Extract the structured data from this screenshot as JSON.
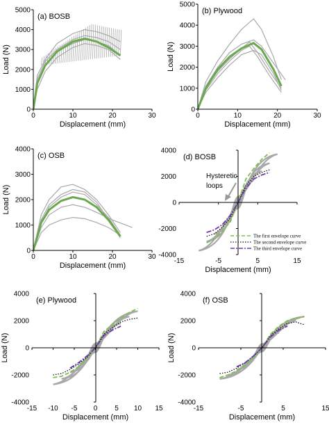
{
  "colors": {
    "gray_curve": "#a8a8a8",
    "green_avg": "#6aa84f",
    "env1": "#7bbf4e",
    "env2": "#111111",
    "env3": "#6a3aa8"
  },
  "chart_data": [
    {
      "id": "a",
      "type": "line",
      "label": "(a) BOSB",
      "xlabel": "Displacement (mm)",
      "ylabel": "Load (N)",
      "xlim": [
        0,
        30
      ],
      "ylim": [
        0,
        5000
      ],
      "xticks": [
        "0",
        "10",
        "20",
        "30"
      ],
      "yticks": [
        "0",
        "1000",
        "2000",
        "3000",
        "4000",
        "5000"
      ],
      "series": [
        {
          "style": "gray",
          "x": [
            0,
            1,
            3,
            6,
            10,
            13,
            16,
            19,
            22
          ],
          "y": [
            0,
            1700,
            2500,
            3300,
            3800,
            4000,
            3900,
            3700,
            3400
          ]
        },
        {
          "style": "gray",
          "x": [
            0,
            1,
            3,
            6,
            10,
            13,
            16,
            19,
            22
          ],
          "y": [
            0,
            1300,
            2200,
            2900,
            3300,
            3500,
            3400,
            3200,
            2700
          ]
        },
        {
          "style": "gray",
          "x": [
            0,
            1,
            3,
            6,
            10,
            13,
            16,
            19,
            22
          ],
          "y": [
            0,
            1000,
            1900,
            2600,
            3100,
            3300,
            3200,
            3000,
            2500
          ]
        },
        {
          "style": "gray",
          "x": [
            0,
            1,
            3,
            6,
            10,
            13,
            16,
            19,
            22
          ],
          "y": [
            0,
            1500,
            2400,
            3000,
            3500,
            3700,
            3600,
            3400,
            3000
          ]
        },
        {
          "style": "green",
          "x": [
            0,
            1,
            3,
            6,
            10,
            13,
            16,
            19,
            22
          ],
          "y": [
            0,
            1300,
            2200,
            2900,
            3400,
            3550,
            3400,
            3100,
            2700
          ]
        }
      ],
      "cyclic_band": {
        "x": [
          2,
          22
        ],
        "low": [
          2200,
          2700
        ],
        "high": [
          2600,
          4300
        ]
      }
    },
    {
      "id": "b",
      "type": "line",
      "label": "(b) Plywood",
      "xlabel": "Displacement (mm)",
      "ylabel": "Load (N)",
      "xlim": [
        0,
        30
      ],
      "ylim": [
        0,
        5000
      ],
      "xticks": [
        "0",
        "10",
        "20",
        "30"
      ],
      "yticks": [
        "0",
        "1000",
        "2000",
        "3000",
        "4000",
        "5000"
      ],
      "series": [
        {
          "style": "gray",
          "x": [
            0,
            2,
            5,
            8,
            11,
            14,
            16,
            19,
            21
          ],
          "y": [
            0,
            1300,
            2300,
            3100,
            3800,
            4300,
            3800,
            2500,
            1400
          ]
        },
        {
          "style": "gray",
          "x": [
            0,
            2,
            5,
            8,
            11,
            13,
            15,
            18,
            21
          ],
          "y": [
            0,
            1000,
            1800,
            2400,
            2900,
            3200,
            2700,
            1800,
            1000
          ]
        },
        {
          "style": "gray",
          "x": [
            0,
            2,
            5,
            8,
            11,
            14,
            16,
            19,
            21
          ],
          "y": [
            0,
            800,
            1500,
            2100,
            2600,
            2800,
            2600,
            1700,
            900
          ]
        },
        {
          "style": "gray",
          "x": [
            0,
            2,
            5,
            8,
            11,
            14,
            16,
            19,
            22
          ],
          "y": [
            0,
            1100,
            2000,
            2700,
            3100,
            3300,
            3000,
            2200,
            1400
          ]
        },
        {
          "style": "gray",
          "x": [
            0,
            2,
            5,
            8,
            11,
            13,
            15,
            18,
            21
          ],
          "y": [
            0,
            900,
            1700,
            2300,
            2800,
            3000,
            2500,
            1600,
            800
          ]
        },
        {
          "style": "green",
          "x": [
            0,
            2,
            5,
            8,
            11,
            14,
            16,
            19,
            21
          ],
          "y": [
            0,
            1000,
            1900,
            2500,
            2900,
            3150,
            2850,
            1900,
            1100
          ]
        }
      ]
    },
    {
      "id": "c",
      "type": "line",
      "label": "(c) OSB",
      "xlabel": "Displacement (mm)",
      "ylabel": "Load (N)",
      "xlim": [
        0,
        30
      ],
      "ylim": [
        0,
        4000
      ],
      "xticks": [
        "0",
        "10",
        "20",
        "30"
      ],
      "yticks": [
        "0",
        "1000",
        "2000",
        "3000",
        "4000"
      ],
      "series": [
        {
          "style": "gray",
          "x": [
            0,
            2,
            4,
            7,
            10,
            13,
            16,
            19,
            22
          ],
          "y": [
            0,
            1400,
            2000,
            2500,
            2600,
            2400,
            2000,
            1400,
            700
          ]
        },
        {
          "style": "gray",
          "x": [
            0,
            2,
            4,
            7,
            10,
            13,
            16,
            19,
            22
          ],
          "y": [
            0,
            1100,
            1700,
            2100,
            2300,
            2200,
            1800,
            1300,
            600
          ]
        },
        {
          "style": "gray",
          "x": [
            0,
            2,
            4,
            7,
            10,
            13,
            16,
            20,
            25
          ],
          "y": [
            0,
            900,
            1400,
            1700,
            1800,
            1700,
            1500,
            1200,
            900
          ]
        },
        {
          "style": "gray",
          "x": [
            0,
            2,
            4,
            7,
            10,
            13,
            16,
            19,
            22
          ],
          "y": [
            0,
            700,
            1000,
            1200,
            1300,
            1250,
            1100,
            900,
            600
          ]
        },
        {
          "style": "gray",
          "x": [
            0,
            2,
            4,
            7,
            10,
            13,
            16,
            19,
            22
          ],
          "y": [
            0,
            1200,
            1800,
            2200,
            2400,
            2300,
            1900,
            1200,
            500
          ]
        },
        {
          "style": "green",
          "x": [
            0,
            2,
            4,
            7,
            10,
            13,
            16,
            19,
            22
          ],
          "y": [
            0,
            1100,
            1600,
            1950,
            2100,
            2000,
            1700,
            1200,
            550
          ]
        }
      ]
    },
    {
      "id": "d",
      "type": "line",
      "label": "(d) BOSB",
      "annotation": "Hysteretic loops",
      "xlabel": "Displacement (mm)",
      "ylabel": "",
      "xlim": [
        -15,
        15
      ],
      "ylim": [
        -4000,
        4000
      ],
      "xticks": [
        "-15",
        "-5",
        "5",
        "15"
      ],
      "yticks": [
        "-4000",
        "-2000",
        "0",
        "2000",
        "4000"
      ],
      "loop_amplitudes": [
        2,
        4,
        6,
        8,
        10
      ],
      "loop_peak_loads": [
        1000,
        1700,
        2400,
        3000,
        3700
      ],
      "series": [
        {
          "style": "env1",
          "name": "The first envelope curve",
          "x": [
            -8,
            -6,
            -4,
            -2,
            0,
            2,
            4,
            6,
            8
          ],
          "y": [
            -3100,
            -2800,
            -2200,
            -1500,
            0,
            1800,
            2600,
            3300,
            3800
          ]
        },
        {
          "style": "env2",
          "name": "The second envelope curve",
          "x": [
            -8,
            -6,
            -4,
            -2,
            0,
            2,
            4,
            6,
            8
          ],
          "y": [
            -2600,
            -2400,
            -1900,
            -1200,
            0,
            1300,
            2000,
            2300,
            2500
          ]
        },
        {
          "style": "env3",
          "name": "The third envelope curve",
          "x": [
            -8,
            -6,
            -4,
            -2,
            0,
            2,
            4,
            6,
            8
          ],
          "y": [
            -2300,
            -2100,
            -1700,
            -1000,
            0,
            1100,
            1800,
            2100,
            2300
          ]
        }
      ]
    },
    {
      "id": "e",
      "type": "line",
      "label": "(e) Plywood",
      "xlabel": "Displacement (mm)",
      "ylabel": "Load (N)",
      "xlim": [
        -15,
        15
      ],
      "ylim": [
        -4000,
        4000
      ],
      "xticks": [
        "-15",
        "-10",
        "-5",
        "0",
        "5",
        "10",
        "15"
      ],
      "yticks": [
        "-4000",
        "-2000",
        "0",
        "2000",
        "4000"
      ],
      "loop_amplitudes": [
        2,
        4,
        6,
        8,
        10
      ],
      "loop_peak_loads": [
        700,
        1300,
        1800,
        2300,
        2700
      ],
      "series": [
        {
          "style": "env1",
          "x": [
            -10,
            -8,
            -6,
            -4,
            -2,
            0,
            2,
            4,
            6,
            8,
            10
          ],
          "y": [
            -2200,
            -2100,
            -1800,
            -1400,
            -800,
            0,
            1200,
            1700,
            2200,
            2600,
            2900
          ]
        },
        {
          "style": "env2",
          "x": [
            -10,
            -8,
            -6,
            -4,
            -2,
            0,
            2,
            4,
            6,
            8,
            10
          ],
          "y": [
            -2000,
            -1900,
            -1600,
            -1200,
            -700,
            0,
            1000,
            1500,
            1900,
            2100,
            2200
          ]
        },
        {
          "style": "env3",
          "x": [
            -6,
            -4,
            -2,
            0,
            2,
            4,
            6
          ],
          "y": [
            -1500,
            -1100,
            -600,
            0,
            900,
            1300,
            1600
          ]
        }
      ]
    },
    {
      "id": "f",
      "type": "line",
      "label": "(f) OSB",
      "xlabel": "Displacement (mm)",
      "ylabel": "Load (N)",
      "xlim": [
        -15,
        15
      ],
      "ylim": [
        -4000,
        4000
      ],
      "xticks": [
        "-15",
        "-5",
        "5",
        "15"
      ],
      "yticks": [
        "-4000",
        "-2000",
        "0",
        "2000",
        "4000"
      ],
      "loop_amplitudes": [
        2,
        4,
        6,
        8,
        10
      ],
      "loop_peak_loads": [
        600,
        1100,
        1600,
        2000,
        2300
      ],
      "series": [
        {
          "style": "env1",
          "x": [
            -10,
            -8,
            -6,
            -4,
            -2,
            0,
            2,
            4,
            6,
            8,
            10
          ],
          "y": [
            -2200,
            -2000,
            -1700,
            -1300,
            -700,
            0,
            1000,
            1600,
            2000,
            2200,
            2300
          ]
        },
        {
          "style": "env2",
          "x": [
            -10,
            -8,
            -6,
            -4,
            -2,
            0,
            2,
            4,
            6,
            8,
            10
          ],
          "y": [
            -1900,
            -1800,
            -1500,
            -1100,
            -600,
            0,
            900,
            1400,
            1800,
            1900,
            1700
          ]
        },
        {
          "style": "env3",
          "x": [
            -6,
            -4,
            -2,
            0,
            2,
            4,
            6
          ],
          "y": [
            -1400,
            -1100,
            -600,
            0,
            800,
            1300,
            1600
          ]
        }
      ]
    }
  ]
}
